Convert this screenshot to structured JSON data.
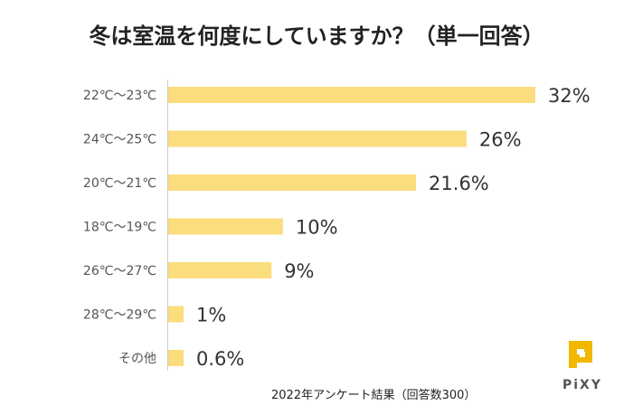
{
  "chart_data": {
    "type": "bar",
    "orientation": "horizontal",
    "title": "冬は室温を何度にしていますか？（単一回答）",
    "categories": [
      "22℃～23℃",
      "24℃～25℃",
      "20℃～21℃",
      "18℃～19℃",
      "26℃～27℃",
      "28℃～29℃",
      "その他"
    ],
    "values": [
      32,
      26,
      21.6,
      10,
      9,
      1,
      0.6
    ],
    "value_labels": [
      "32%",
      "26%",
      "21.6%",
      "10%",
      "9%",
      "1%",
      "0.6%"
    ],
    "unit": "%",
    "xlim": [
      0,
      32
    ],
    "bar_color": "#FBDD7E",
    "grid": false,
    "legend": "none"
  },
  "footnote": "2022年アンケート結果（回答数300）",
  "brand": {
    "name": "PiXY",
    "logo_color": "#F2B700"
  }
}
